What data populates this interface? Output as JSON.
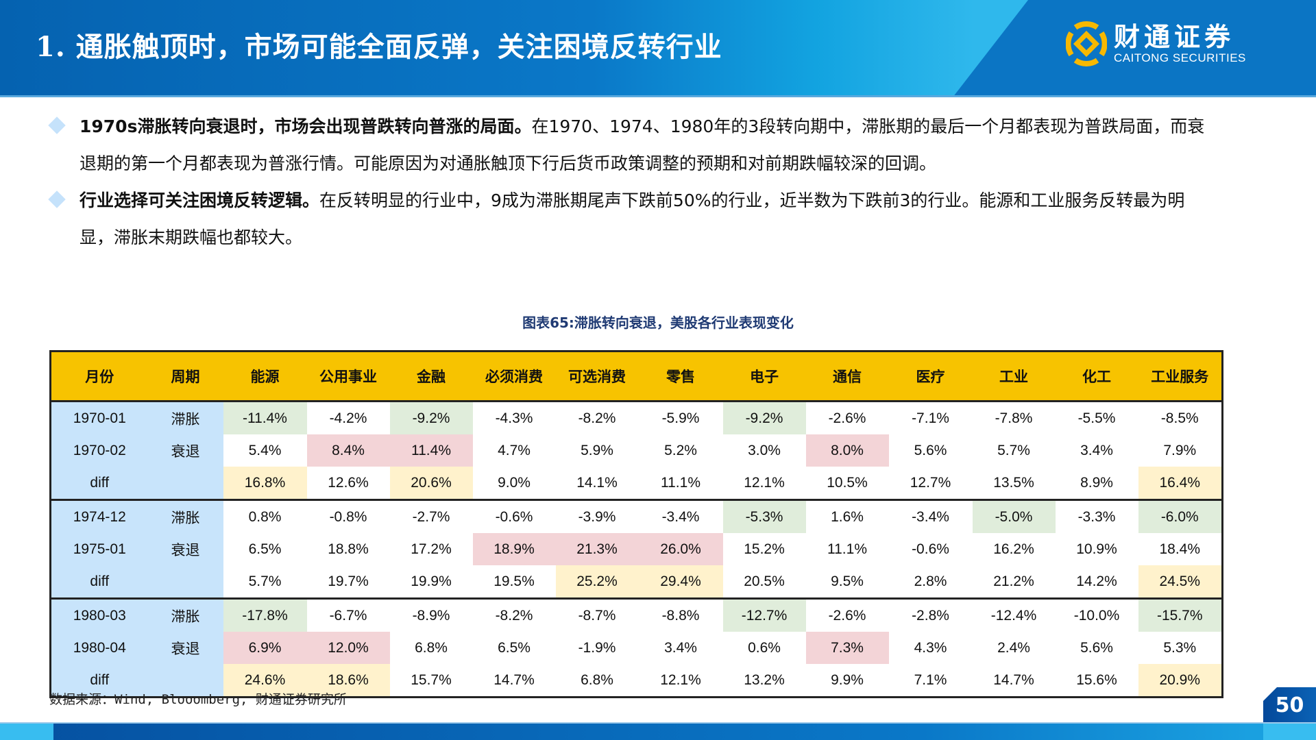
{
  "header": {
    "title": "1. 通胀触顶时，市场可能全面反弹，关注困境反转行业",
    "logo_cn": "财通证券",
    "logo_en": "CAITONG SECURITIES",
    "logo_icon": "caitong-logo-icon"
  },
  "bullets": [
    {
      "bold": "1970s滞胀转向衰退时，市场会出现普跌转向普涨的局面。",
      "text": "在1970、1974、1980年的3段转向期中，滞胀期的最后一个月都表现为普跌局面，而衰退期的第一个月都表现为普涨行情。可能原因为对通胀触顶下行后货币政策调整的预期和对前期跌幅较深的回调。"
    },
    {
      "bold": "行业选择可关注困境反转逻辑。",
      "text": "在反转明显的行业中，9成为滞胀期尾声下跌前50%的行业，近半数为下跌前3的行业。能源和工业服务反转最为明显，滞胀末期跌幅也都较大。"
    }
  ],
  "caption": "图表65:滞胀转向衰退，美股各行业表现变化",
  "table": {
    "headers": [
      "月份",
      "周期",
      "能源",
      "公用事业",
      "金融",
      "必须消费",
      "可选消费",
      "零售",
      "电子",
      "通信",
      "医疗",
      "工业",
      "化工",
      "工业服务"
    ],
    "rows": [
      {
        "month": "1970-01",
        "cycle": "滞胀",
        "values": [
          "-11.4%",
          "-4.2%",
          "-9.2%",
          "-4.3%",
          "-8.2%",
          "-5.9%",
          "-9.2%",
          "-2.6%",
          "-7.1%",
          "-7.8%",
          "-5.5%",
          "-8.5%"
        ],
        "hl": [
          "green",
          "",
          "green",
          "",
          "",
          "",
          "green",
          "",
          "",
          "",
          "",
          ""
        ]
      },
      {
        "month": "1970-02",
        "cycle": "衰退",
        "values": [
          "5.4%",
          "8.4%",
          "11.4%",
          "4.7%",
          "5.9%",
          "5.2%",
          "3.0%",
          "8.0%",
          "5.6%",
          "5.7%",
          "3.4%",
          "7.9%"
        ],
        "hl": [
          "",
          "red",
          "red",
          "",
          "",
          "",
          "",
          "red",
          "",
          "",
          "",
          ""
        ]
      },
      {
        "month": "diff",
        "cycle": "",
        "values": [
          "16.8%",
          "12.6%",
          "20.6%",
          "9.0%",
          "14.1%",
          "11.1%",
          "12.1%",
          "10.5%",
          "12.7%",
          "13.5%",
          "8.9%",
          "16.4%"
        ],
        "hl": [
          "yellow",
          "",
          "yellow",
          "",
          "",
          "",
          "",
          "",
          "",
          "",
          "",
          "yellow"
        ]
      },
      {
        "month": "1974-12",
        "cycle": "滞胀",
        "values": [
          "0.8%",
          "-0.8%",
          "-2.7%",
          "-0.6%",
          "-3.9%",
          "-3.4%",
          "-5.3%",
          "1.6%",
          "-3.4%",
          "-5.0%",
          "-3.3%",
          "-6.0%"
        ],
        "hl": [
          "",
          "",
          "",
          "",
          "",
          "",
          "green",
          "",
          "",
          "green",
          "",
          "green"
        ]
      },
      {
        "month": "1975-01",
        "cycle": "衰退",
        "values": [
          "6.5%",
          "18.8%",
          "17.2%",
          "18.9%",
          "21.3%",
          "26.0%",
          "15.2%",
          "11.1%",
          "-0.6%",
          "16.2%",
          "10.9%",
          "18.4%"
        ],
        "hl": [
          "",
          "",
          "",
          "red",
          "red",
          "red",
          "",
          "",
          "",
          "",
          "",
          ""
        ]
      },
      {
        "month": "diff",
        "cycle": "",
        "values": [
          "5.7%",
          "19.7%",
          "19.9%",
          "19.5%",
          "25.2%",
          "29.4%",
          "20.5%",
          "9.5%",
          "2.8%",
          "21.2%",
          "14.2%",
          "24.5%"
        ],
        "hl": [
          "",
          "",
          "",
          "",
          "yellow",
          "yellow",
          "",
          "",
          "",
          "",
          "",
          "yellow"
        ]
      },
      {
        "month": "1980-03",
        "cycle": "滞胀",
        "values": [
          "-17.8%",
          "-6.7%",
          "-8.9%",
          "-8.2%",
          "-8.7%",
          "-8.8%",
          "-12.7%",
          "-2.6%",
          "-2.8%",
          "-12.4%",
          "-10.0%",
          "-15.7%"
        ],
        "hl": [
          "green",
          "",
          "",
          "",
          "",
          "",
          "green",
          "",
          "",
          "",
          "",
          "green"
        ]
      },
      {
        "month": "1980-04",
        "cycle": "衰退",
        "values": [
          "6.9%",
          "12.0%",
          "6.8%",
          "6.5%",
          "-1.9%",
          "3.4%",
          "0.6%",
          "7.3%",
          "4.3%",
          "2.4%",
          "5.6%",
          "5.3%"
        ],
        "hl": [
          "red",
          "red",
          "",
          "",
          "",
          "",
          "",
          "red",
          "",
          "",
          "",
          ""
        ]
      },
      {
        "month": "diff",
        "cycle": "",
        "values": [
          "24.6%",
          "18.6%",
          "15.7%",
          "14.7%",
          "6.8%",
          "12.1%",
          "13.2%",
          "9.9%",
          "7.1%",
          "14.7%",
          "15.6%",
          "20.9%"
        ],
        "hl": [
          "yellow",
          "yellow",
          "",
          "",
          "",
          "",
          "",
          "",
          "",
          "",
          "",
          "yellow"
        ]
      }
    ]
  },
  "chart_data": {
    "type": "table",
    "title": "图表65:滞胀转向衰退，美股各行业表现变化",
    "columns": [
      "月份",
      "周期",
      "能源",
      "公用事业",
      "金融",
      "必须消费",
      "可选消费",
      "零售",
      "电子",
      "通信",
      "医疗",
      "工业",
      "化工",
      "工业服务"
    ],
    "rows": [
      [
        "1970-01",
        "滞胀",
        "-11.4%",
        "-4.2%",
        "-9.2%",
        "-4.3%",
        "-8.2%",
        "-5.9%",
        "-9.2%",
        "-2.6%",
        "-7.1%",
        "-7.8%",
        "-5.5%",
        "-8.5%"
      ],
      [
        "1970-02",
        "衰退",
        "5.4%",
        "8.4%",
        "11.4%",
        "4.7%",
        "5.9%",
        "5.2%",
        "3.0%",
        "8.0%",
        "5.6%",
        "5.7%",
        "3.4%",
        "7.9%"
      ],
      [
        "diff",
        "",
        "16.8%",
        "12.6%",
        "20.6%",
        "9.0%",
        "14.1%",
        "11.1%",
        "12.1%",
        "10.5%",
        "12.7%",
        "13.5%",
        "8.9%",
        "16.4%"
      ],
      [
        "1974-12",
        "滞胀",
        "0.8%",
        "-0.8%",
        "-2.7%",
        "-0.6%",
        "-3.9%",
        "-3.4%",
        "-5.3%",
        "1.6%",
        "-3.4%",
        "-5.0%",
        "-3.3%",
        "-6.0%"
      ],
      [
        "1975-01",
        "衰退",
        "6.5%",
        "18.8%",
        "17.2%",
        "18.9%",
        "21.3%",
        "26.0%",
        "15.2%",
        "11.1%",
        "-0.6%",
        "16.2%",
        "10.9%",
        "18.4%"
      ],
      [
        "diff",
        "",
        "5.7%",
        "19.7%",
        "19.9%",
        "19.5%",
        "25.2%",
        "29.4%",
        "20.5%",
        "9.5%",
        "2.8%",
        "21.2%",
        "14.2%",
        "24.5%"
      ],
      [
        "1980-03",
        "滞胀",
        "-17.8%",
        "-6.7%",
        "-8.9%",
        "-8.2%",
        "-8.7%",
        "-8.8%",
        "-12.7%",
        "-2.6%",
        "-2.8%",
        "-12.4%",
        "-10.0%",
        "-15.7%"
      ],
      [
        "1980-04",
        "衰退",
        "6.9%",
        "12.0%",
        "6.8%",
        "6.5%",
        "-1.9%",
        "3.4%",
        "0.6%",
        "7.3%",
        "4.3%",
        "2.4%",
        "5.6%",
        "5.3%"
      ],
      [
        "diff",
        "",
        "24.6%",
        "18.6%",
        "15.7%",
        "14.7%",
        "6.8%",
        "12.1%",
        "13.2%",
        "9.9%",
        "7.1%",
        "14.7%",
        "15.6%",
        "20.9%"
      ]
    ]
  },
  "source": "数据来源：Wind, Blooomberg, 财通证券研究所",
  "page_number": "50",
  "colors": {
    "header_blue": "#0562b0",
    "table_header": "#f7c300",
    "label_blue": "#c8e4fb",
    "highlight_green": "#e0eddb",
    "highlight_red": "#f3d4d7",
    "highlight_yellow": "#fff2cc",
    "caption": "#1f3a73"
  }
}
